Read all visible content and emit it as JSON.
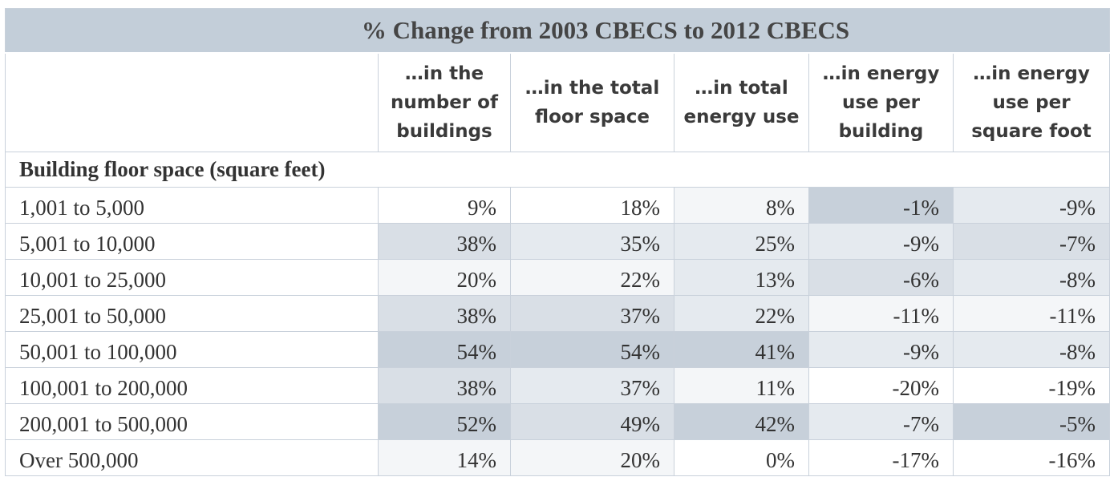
{
  "title": "% Change from 2003 CBECS to 2012 CBECS",
  "columns": [
    "…in the\nnumber of\nbuildings",
    "…in the total\nfloor space",
    "…in total\nenergy use",
    "…in energy\nuse per\nbuilding",
    "…in energy\nuse per\nsquare foot"
  ],
  "section_label": "Building floor space (square feet)",
  "rows": [
    {
      "label": "1,001 to 5,000",
      "values": [
        "9%",
        "18%",
        "8%",
        "-1%",
        "-9%"
      ],
      "shades": [
        0,
        0,
        1,
        4,
        2
      ]
    },
    {
      "label": "5,001 to 10,000",
      "values": [
        "38%",
        "35%",
        "25%",
        "-9%",
        "-7%"
      ],
      "shades": [
        3,
        2,
        2,
        2,
        3
      ]
    },
    {
      "label": "10,001 to 25,000",
      "values": [
        "20%",
        "22%",
        "13%",
        "-6%",
        "-8%"
      ],
      "shades": [
        1,
        1,
        2,
        3,
        2
      ]
    },
    {
      "label": "25,001 to 50,000",
      "values": [
        "38%",
        "37%",
        "22%",
        "-11%",
        "-11%"
      ],
      "shades": [
        3,
        3,
        2,
        1,
        1
      ]
    },
    {
      "label": "50,001 to 100,000",
      "values": [
        "54%",
        "54%",
        "41%",
        "-9%",
        "-8%"
      ],
      "shades": [
        4,
        4,
        4,
        2,
        2
      ]
    },
    {
      "label": "100,001 to 200,000",
      "values": [
        "38%",
        "37%",
        "11%",
        "-20%",
        "-19%"
      ],
      "shades": [
        3,
        2,
        1,
        0,
        0
      ]
    },
    {
      "label": "200,001 to 500,000",
      "values": [
        "52%",
        "49%",
        "42%",
        "-7%",
        "-5%"
      ],
      "shades": [
        4,
        3,
        4,
        2,
        4
      ]
    },
    {
      "label": "Over 500,000",
      "values": [
        "14%",
        "20%",
        "0%",
        "-17%",
        "-16%"
      ],
      "shades": [
        1,
        1,
        0,
        0,
        0
      ]
    }
  ]
}
